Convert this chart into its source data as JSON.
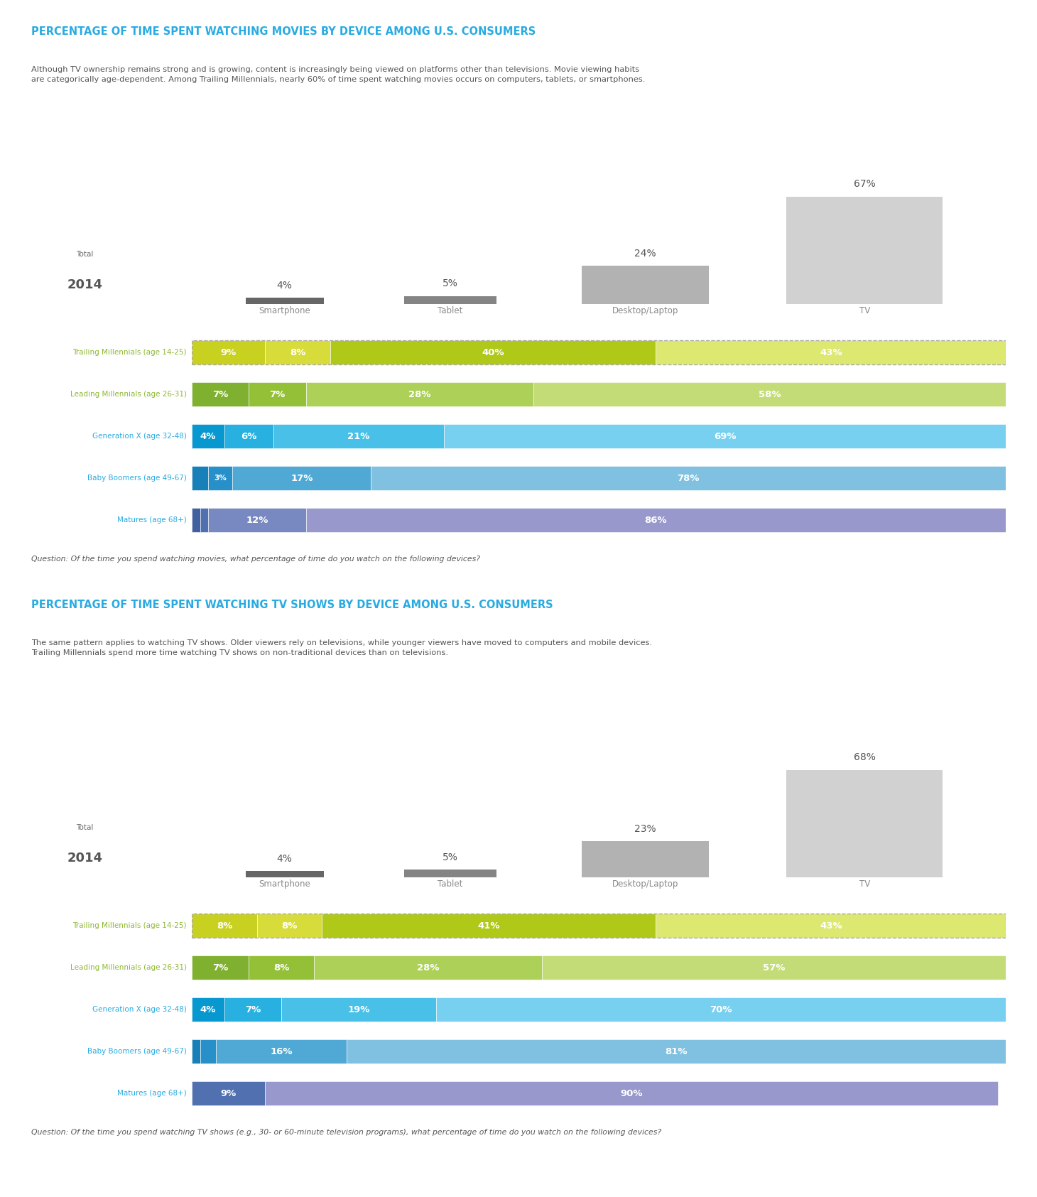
{
  "title1": "PERCENTAGE OF TIME SPENT WATCHING MOVIES BY DEVICE AMONG U.S. CONSUMERS",
  "subtitle1": "Although TV ownership remains strong and is growing, content is increasingly being viewed on platforms other than televisions. Movie viewing habits\nare categorically age-dependent. Among Trailing Millennials, nearly 60% of time spent watching movies occurs on computers, tablets, or smartphones.",
  "title2": "PERCENTAGE OF TIME SPENT WATCHING TV SHOWS BY DEVICE AMONG U.S. CONSUMERS",
  "subtitle2": "The same pattern applies to watching TV shows. Older viewers rely on televisions, while younger viewers have moved to computers and mobile devices.\nTrailing Millennials spend more time watching TV shows on non-traditional devices than on televisions.",
  "question1": "Question: Of the time you spend watching movies, what percentage of time do you watch on the following devices?",
  "question2": "Question: Of the time you spend watching TV shows (e.g., 30- or 60-minute television programs), what percentage of time do you watch on the following devices?",
  "devices": [
    "Smartphone",
    "Tablet",
    "Desktop/Laptop",
    "TV"
  ],
  "devices_pct_movies": [
    4,
    5,
    24,
    67
  ],
  "devices_pct_tvshows": [
    4,
    5,
    23,
    68
  ],
  "bar_labels": [
    "Trailing Millennials (age 14-25)",
    "Leading Millennials (age 26-31)",
    "Generation X (age 32-48)",
    "Baby Boomers (age 49-67)",
    "Matures (age 68+)"
  ],
  "label_short": [
    "Trailing Millennials",
    "Leading Millennials",
    "Generation X",
    "Baby Boomers",
    "Matures"
  ],
  "label_age": [
    " (age 14-25)",
    " (age 26-31)",
    " (age 32-48)",
    " (age 49-67)",
    " (age 68+)"
  ],
  "label_colors": [
    "#8db832",
    "#8db832",
    "#29abe2",
    "#29abe2",
    "#29abe2"
  ],
  "movies_data": [
    [
      9,
      8,
      40,
      43
    ],
    [
      7,
      7,
      28,
      58
    ],
    [
      4,
      6,
      21,
      69
    ],
    [
      2,
      3,
      17,
      78
    ],
    [
      1,
      1,
      12,
      86
    ]
  ],
  "tvshows_data": [
    [
      8,
      8,
      41,
      43
    ],
    [
      7,
      8,
      28,
      57
    ],
    [
      4,
      7,
      19,
      70
    ],
    [
      1,
      2,
      16,
      81
    ],
    [
      0,
      9,
      0,
      90
    ]
  ],
  "movies_colors": [
    [
      "#c8d020",
      "#d8dc3a",
      "#b0c818",
      "#dce870"
    ],
    [
      "#80b030",
      "#94c038",
      "#acd058",
      "#c4dc78"
    ],
    [
      "#0898d0",
      "#28b0e0",
      "#48c0e8",
      "#78d0f0"
    ],
    [
      "#1880b8",
      "#2890c8",
      "#50a8d4",
      "#80c0e0"
    ],
    [
      "#4060a0",
      "#5070b0",
      "#7888c0",
      "#9898cc"
    ]
  ],
  "tvshows_colors": [
    [
      "#c8d020",
      "#d8dc3a",
      "#b0c818",
      "#dce870"
    ],
    [
      "#80b030",
      "#94c038",
      "#acd058",
      "#c4dc78"
    ],
    [
      "#0898d0",
      "#28b0e0",
      "#48c0e8",
      "#78d0f0"
    ],
    [
      "#1880b8",
      "#2890c8",
      "#50a8d4",
      "#80c0e0"
    ],
    [
      "#4060a0",
      "#5070b0",
      "#7888c0",
      "#9898cc"
    ]
  ],
  "title_color": "#29abe2",
  "bg_color": "#ffffff",
  "year_label_small": "Total",
  "year_label_big": "2014",
  "device_bar_colors": [
    "#555555",
    "#777777",
    "#aaaaaa",
    "#cccccc"
  ]
}
